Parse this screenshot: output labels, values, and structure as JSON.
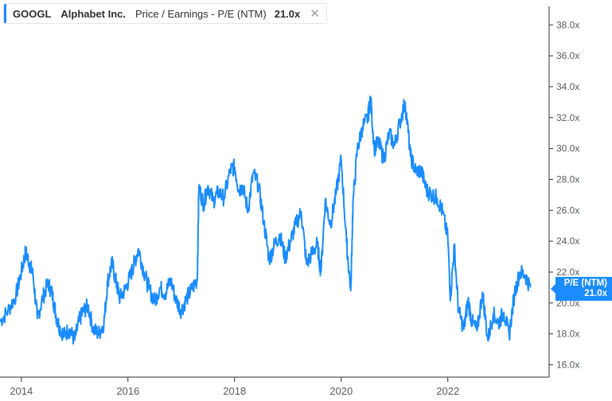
{
  "legend": {
    "ticker": "GOOGL",
    "company": "Alphabet Inc.",
    "metric": "Price / Earnings - P/E (NTM)",
    "value": "21.0x",
    "close_symbol": "✕"
  },
  "badge": {
    "label": "P/E (NTM)",
    "value": "21.0x"
  },
  "colors": {
    "line": "#1a8cff",
    "axis": "#2b2f33",
    "background": "#ffffff"
  },
  "chart_data": {
    "type": "line",
    "title": "",
    "xlabel": "",
    "ylabel": "",
    "y_tick_labels": [
      "16.0x",
      "18.0x",
      "20.0x",
      "22.0x",
      "24.0x",
      "26.0x",
      "28.0x",
      "30.0x",
      "32.0x",
      "34.0x",
      "36.0x",
      "38.0x"
    ],
    "y_ticks": [
      16,
      18,
      20,
      22,
      24,
      26,
      28,
      30,
      32,
      34,
      36,
      38
    ],
    "x_tick_labels": [
      "2014",
      "2016",
      "2018",
      "2020",
      "2022"
    ],
    "x_ticks": [
      2014,
      2016,
      2018,
      2020,
      2022
    ],
    "xlim": [
      2013.6,
      2023.9
    ],
    "ylim": [
      15.2,
      39.2
    ],
    "grid": false,
    "series": [
      {
        "name": "P/E (NTM)",
        "x": [
          2013.6,
          2013.75,
          2013.9,
          2014.0,
          2014.08,
          2014.15,
          2014.22,
          2014.3,
          2014.4,
          2014.5,
          2014.58,
          2014.65,
          2014.72,
          2014.8,
          2014.9,
          2015.0,
          2015.08,
          2015.15,
          2015.25,
          2015.35,
          2015.45,
          2015.55,
          2015.62,
          2015.7,
          2015.78,
          2015.85,
          2015.95,
          2016.05,
          2016.12,
          2016.2,
          2016.3,
          2016.4,
          2016.5,
          2016.6,
          2016.7,
          2016.8,
          2016.9,
          2017.0,
          2017.1,
          2017.2,
          2017.3,
          2017.33,
          2017.42,
          2017.5,
          2017.6,
          2017.7,
          2017.8,
          2017.92,
          2018.0,
          2018.08,
          2018.15,
          2018.25,
          2018.35,
          2018.45,
          2018.55,
          2018.65,
          2018.75,
          2018.85,
          2018.95,
          2019.05,
          2019.15,
          2019.25,
          2019.35,
          2019.45,
          2019.55,
          2019.62,
          2019.7,
          2019.8,
          2019.9,
          2020.0,
          2020.1,
          2020.18,
          2020.22,
          2020.3,
          2020.4,
          2020.5,
          2020.55,
          2020.62,
          2020.7,
          2020.8,
          2020.9,
          2021.0,
          2021.1,
          2021.2,
          2021.3,
          2021.4,
          2021.5,
          2021.6,
          2021.7,
          2021.8,
          2021.9,
          2022.0,
          2022.05,
          2022.12,
          2022.2,
          2022.3,
          2022.38,
          2022.45,
          2022.55,
          2022.65,
          2022.75,
          2022.85,
          2022.95,
          2023.05,
          2023.15,
          2023.25,
          2023.35,
          2023.45,
          2023.55
        ],
        "y": [
          18.8,
          19.5,
          20.5,
          22.0,
          23.3,
          22.6,
          21.8,
          19.0,
          20.3,
          21.3,
          20.6,
          19.2,
          18.4,
          17.9,
          18.3,
          17.6,
          18.8,
          19.4,
          19.8,
          18.3,
          18.0,
          18.7,
          21.4,
          22.6,
          21.3,
          20.3,
          20.9,
          21.8,
          22.6,
          23.5,
          22.0,
          20.9,
          20.1,
          21.0,
          20.6,
          21.5,
          20.2,
          19.5,
          20.3,
          20.9,
          21.5,
          27.5,
          26.4,
          27.6,
          26.6,
          27.2,
          26.8,
          28.6,
          28.8,
          27.3,
          27.6,
          26.0,
          28.4,
          27.6,
          25.2,
          22.8,
          23.8,
          24.4,
          22.9,
          24.0,
          25.1,
          25.9,
          22.5,
          23.2,
          23.8,
          22.0,
          26.6,
          25.1,
          27.0,
          29.3,
          23.9,
          20.8,
          26.4,
          29.9,
          31.4,
          32.0,
          33.3,
          30.0,
          30.4,
          29.3,
          31.0,
          30.2,
          31.7,
          33.0,
          29.5,
          28.5,
          28.6,
          27.3,
          27.0,
          26.8,
          25.9,
          24.2,
          20.3,
          23.7,
          19.5,
          18.3,
          20.2,
          18.8,
          18.2,
          20.7,
          17.6,
          19.3,
          18.7,
          19.4,
          17.9,
          20.6,
          22.0,
          21.8,
          21.0
        ]
      }
    ]
  }
}
